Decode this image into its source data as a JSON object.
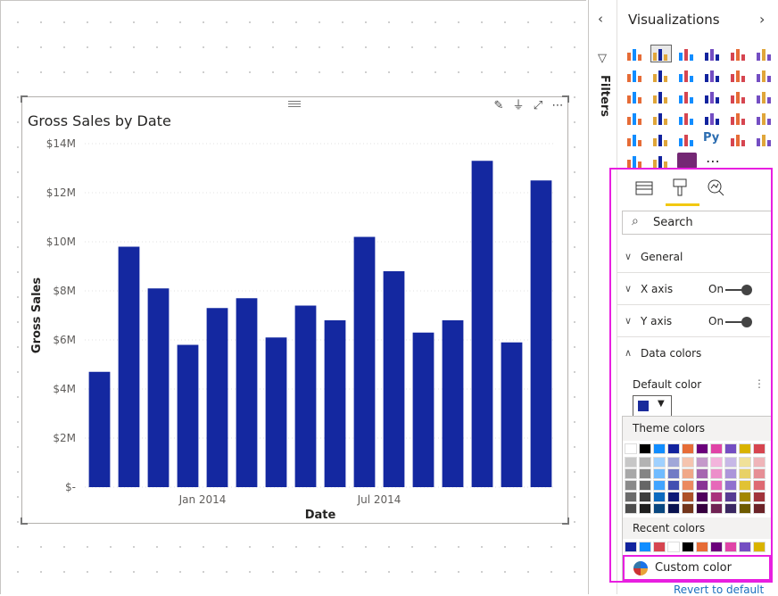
{
  "chart": {
    "toolbar_icons": [
      "pin-icon",
      "filter-icon",
      "focus-mode-icon",
      "more-options-icon"
    ]
  },
  "chart_data": {
    "type": "bar",
    "title": "Gross Sales by Date",
    "xlabel": "Date",
    "ylabel": "Gross Sales",
    "ylim": [
      0,
      14000000
    ],
    "yticks": [
      "$-",
      "$2M",
      "$4M",
      "$6M",
      "$8M",
      "$10M",
      "$12M",
      "$14M"
    ],
    "ytick_values": [
      0,
      2000000,
      4000000,
      6000000,
      8000000,
      10000000,
      12000000,
      14000000
    ],
    "xtick_labels": [
      {
        "label": "Jan 2014",
        "index": 3.5
      },
      {
        "label": "Jul 2014",
        "index": 9.5
      }
    ],
    "series": [
      {
        "color": "#1428a0",
        "values": [
          4700000,
          9800000,
          8100000,
          5800000,
          7300000,
          7700000,
          6100000,
          7400000,
          6800000,
          10200000,
          8800000,
          6300000,
          6800000,
          13300000,
          5900000,
          12500000
        ]
      }
    ],
    "grid": true
  },
  "filters": {
    "label": "Filters"
  },
  "viz": {
    "title": "Visualizations",
    "tabs": [
      "fields-icon",
      "format-paintbrush-icon",
      "analytics-icon"
    ],
    "search_placeholder": "Search",
    "sections": [
      {
        "label": "General",
        "chev": "∨"
      },
      {
        "label": "X axis",
        "chev": "∨",
        "toggle": "On"
      },
      {
        "label": "Y axis",
        "chev": "∨",
        "toggle": "On"
      },
      {
        "label": "Data colors",
        "chev": "∧"
      }
    ],
    "default_color_label": "Default color",
    "default_color": "#1a2b9b",
    "theme_colors_label": "Theme colors",
    "recent_colors_label": "Recent colors",
    "custom_color_label": "Custom color",
    "revert_label": "Revert to default",
    "theme_top": [
      "#ffffff",
      "#000000",
      "#118dff",
      "#12239e",
      "#e66c37",
      "#6b007b",
      "#e044a7",
      "#744ec2",
      "#d9b300",
      "#d64550"
    ],
    "recent": [
      "#12239e",
      "#118dff",
      "#d64550",
      "#ffffff",
      "#000000",
      "#e66c37",
      "#6b007b",
      "#e044a7",
      "#744ec2",
      "#d9b300"
    ]
  },
  "accent_colors": {
    "selection": "#e81fe0",
    "tab_underline": "#f2c811"
  }
}
